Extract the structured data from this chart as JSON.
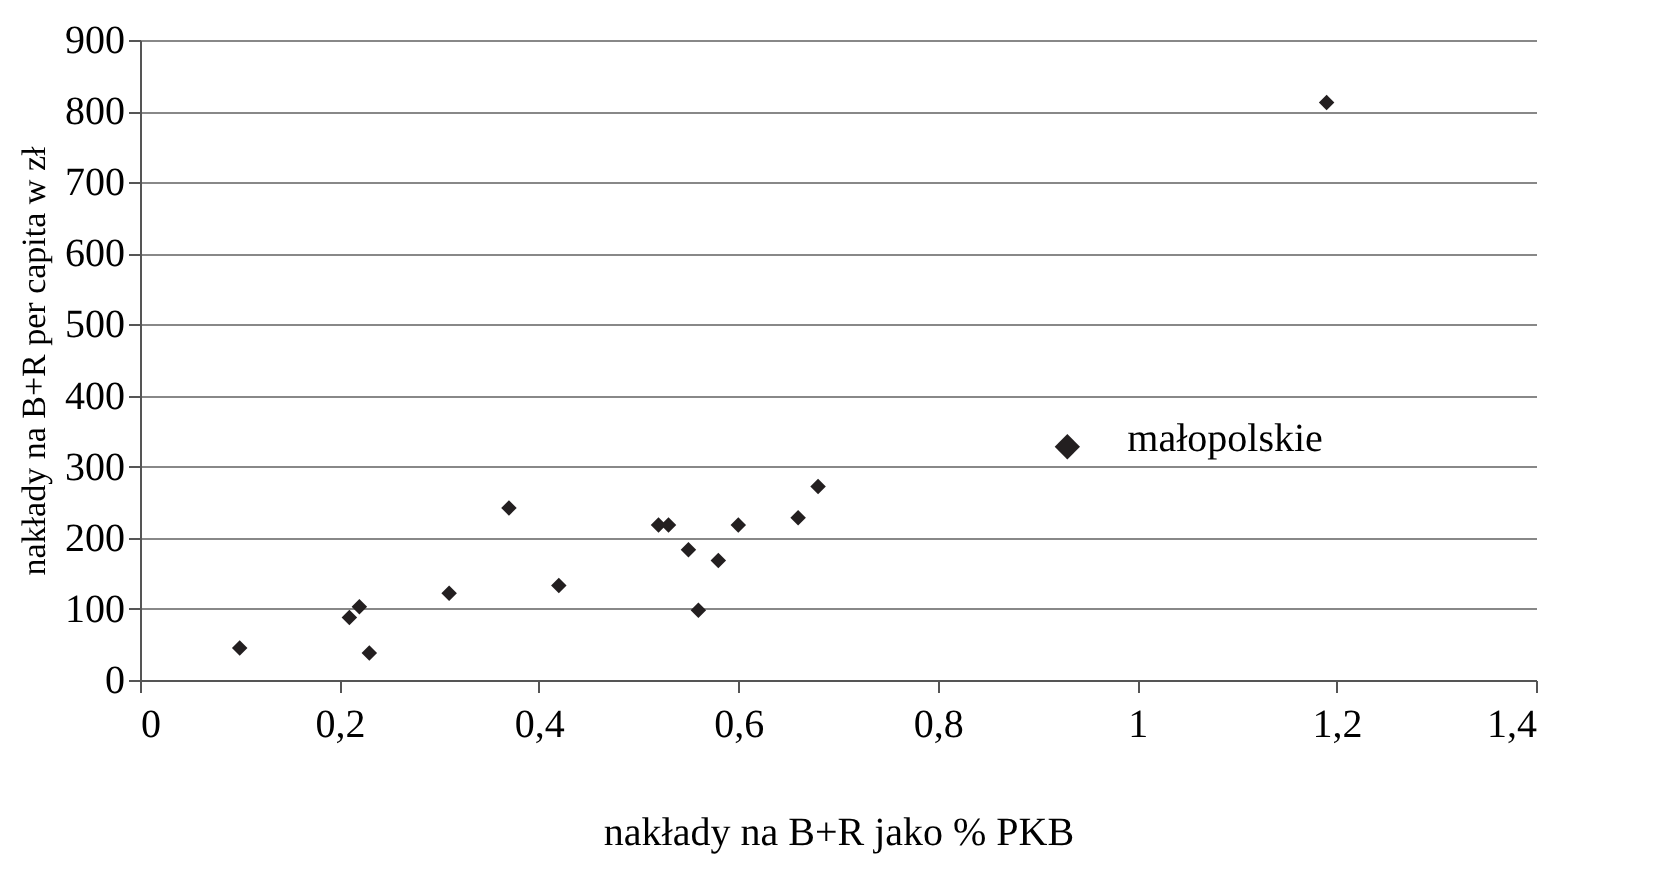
{
  "chart_data": {
    "type": "scatter",
    "xlabel": "nakłady na B+R jako % PKB",
    "ylabel": "nakłady na B+R per capita w zł",
    "series": [
      {
        "color": "#231f20",
        "x": [
          0.1,
          0.21,
          0.22,
          0.23,
          0.31,
          0.37,
          0.42,
          0.52,
          0.53,
          0.55,
          0.56,
          0.58,
          0.6,
          0.66,
          0.68,
          1.19
        ],
        "values": [
          45,
          88,
          103,
          38,
          122,
          242,
          133,
          218,
          218,
          183,
          98,
          168,
          218,
          228,
          272,
          812
        ]
      },
      {
        "color": "#231f20",
        "x": [
          0.93
        ],
        "values": [
          328
        ]
      }
    ],
    "annotations": [
      {
        "text": "małopolskie",
        "x": 0.93,
        "y": 328
      }
    ],
    "xlim": [
      0,
      1.4
    ],
    "xticks": [
      0,
      {
        "value": 0.2,
        "label": "0,2"
      },
      {
        "value": 0.4,
        "label": "0,4"
      },
      {
        "value": 0.6,
        "label": "0,6"
      },
      {
        "value": 0.8,
        "label": "0,8"
      },
      1,
      {
        "value": 1.2,
        "label": "1,2"
      },
      {
        "value": 1.4,
        "label": "1,4"
      }
    ],
    "ylim": [
      0,
      900
    ],
    "yticks": [
      0,
      100,
      200,
      300,
      400,
      500,
      600,
      700,
      800,
      900
    ],
    "grid": "y",
    "marker": "diamond"
  }
}
